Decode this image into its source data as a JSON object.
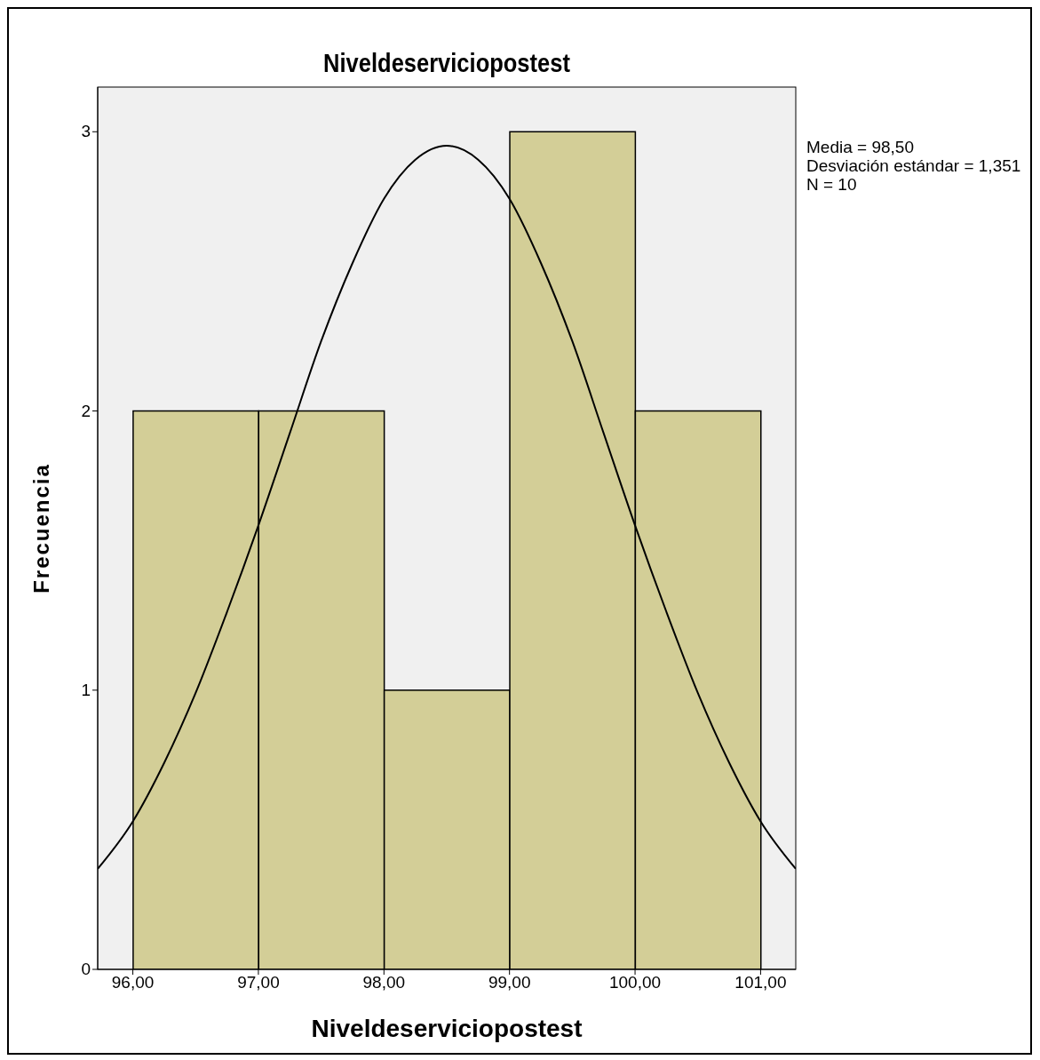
{
  "chart_data": {
    "type": "histogram",
    "title": "Niveldeserviciopostest",
    "xlabel": "Niveldeserviciopostest",
    "ylabel": "Frecuencia",
    "annotations": [
      "Media = 98,50",
      "Desviación estándar = 1,351",
      "N = 10"
    ],
    "bins": [
      96,
      97,
      98,
      99,
      100,
      101
    ],
    "values": [
      2,
      2,
      1,
      3,
      2
    ],
    "color": "#d3ce97",
    "series": [
      {
        "type": "line",
        "color": "#000000",
        "x": [
          95.72,
          96,
          96.25,
          96.5,
          96.75,
          97,
          97.25,
          97.5,
          97.75,
          98,
          98.25,
          98.5,
          98.75,
          99,
          99.25,
          99.5,
          99.75,
          100,
          100.25,
          100.5,
          100.75,
          101,
          101.28
        ],
        "values": [
          0.36,
          0.53,
          0.74,
          0.99,
          1.28,
          1.59,
          1.92,
          2.25,
          2.53,
          2.76,
          2.9,
          2.95,
          2.9,
          2.76,
          2.53,
          2.25,
          1.92,
          1.59,
          1.28,
          0.99,
          0.74,
          0.53,
          0.36
        ]
      }
    ],
    "xlim": [
      95.72,
      101.28
    ],
    "xticks": [
      {
        "value": 96,
        "label": "96,00"
      },
      {
        "value": 97,
        "label": "97,00"
      },
      {
        "value": 98,
        "label": "98,00"
      },
      {
        "value": 99,
        "label": "99,00"
      },
      {
        "value": 100,
        "label": "100,00"
      },
      {
        "value": 101,
        "label": "101,00"
      }
    ],
    "ylim": [
      0,
      3.16
    ],
    "yticks": [
      0,
      1,
      2,
      3
    ]
  }
}
